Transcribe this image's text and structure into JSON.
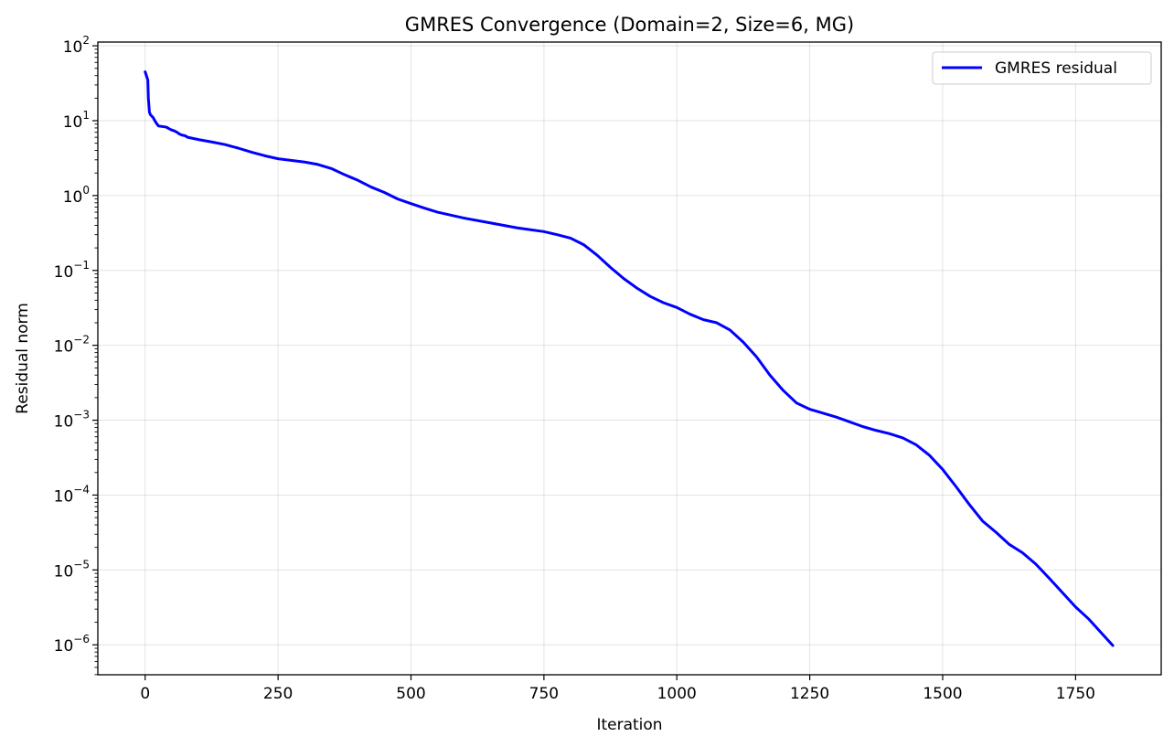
{
  "chart_data": {
    "type": "line",
    "title": "GMRES Convergence (Domain=2, Size=6, MG)",
    "xlabel": "Iteration",
    "ylabel": "Residual norm",
    "xlim": [
      -89,
      1911
    ],
    "ylim_log10": [
      -6.4,
      2.05
    ],
    "yscale": "log",
    "grid": true,
    "legend_position": "top-right",
    "x_ticks": [
      0,
      250,
      500,
      750,
      1000,
      1250,
      1500,
      1750
    ],
    "y_ticks": [
      {
        "base": "10",
        "exp": "2",
        "value": 100
      },
      {
        "base": "10",
        "exp": "1",
        "value": 10
      },
      {
        "base": "10",
        "exp": "0",
        "value": 1
      },
      {
        "base": "10",
        "exp": "−1",
        "value": 0.1
      },
      {
        "base": "10",
        "exp": "−2",
        "value": 0.01
      },
      {
        "base": "10",
        "exp": "−3",
        "value": 0.001
      },
      {
        "base": "10",
        "exp": "−4",
        "value": 0.0001
      },
      {
        "base": "10",
        "exp": "−5",
        "value": 1e-05
      },
      {
        "base": "10",
        "exp": "−6",
        "value": 1e-06
      }
    ],
    "series": [
      {
        "name": "GMRES residual",
        "color": "#0000ff",
        "x": [
          0,
          5,
          6,
          8,
          10,
          15,
          20,
          25,
          30,
          40,
          45,
          50,
          55,
          60,
          65,
          70,
          75,
          80,
          85,
          100,
          125,
          150,
          175,
          200,
          225,
          250,
          300,
          325,
          350,
          375,
          400,
          425,
          450,
          475,
          500,
          525,
          550,
          600,
          650,
          700,
          750,
          775,
          800,
          825,
          850,
          875,
          900,
          925,
          950,
          975,
          1000,
          1025,
          1050,
          1075,
          1100,
          1125,
          1150,
          1175,
          1200,
          1225,
          1250,
          1300,
          1350,
          1375,
          1400,
          1425,
          1450,
          1475,
          1500,
          1525,
          1550,
          1575,
          1600,
          1625,
          1650,
          1675,
          1700,
          1725,
          1750,
          1775,
          1800,
          1820
        ],
        "y": [
          45,
          35,
          20,
          13,
          12,
          11,
          9.5,
          8.5,
          8.4,
          8.2,
          7.8,
          7.5,
          7.3,
          7.0,
          6.6,
          6.4,
          6.3,
          6.0,
          5.9,
          5.6,
          5.2,
          4.8,
          4.3,
          3.8,
          3.4,
          3.1,
          2.8,
          2.6,
          2.3,
          1.9,
          1.6,
          1.3,
          1.1,
          0.9,
          0.78,
          0.68,
          0.6,
          0.5,
          0.43,
          0.37,
          0.33,
          0.3,
          0.27,
          0.22,
          0.16,
          0.11,
          0.078,
          0.058,
          0.045,
          0.037,
          0.032,
          0.026,
          0.022,
          0.02,
          0.016,
          0.011,
          0.007,
          0.004,
          0.0025,
          0.0017,
          0.0014,
          0.0011,
          0.00082,
          0.00073,
          0.00066,
          0.00058,
          0.00047,
          0.00034,
          0.00022,
          0.00013,
          7.5e-05,
          4.5e-05,
          3.2e-05,
          2.2e-05,
          1.7e-05,
          1.2e-05,
          7.8e-06,
          5e-06,
          3.2e-06,
          2.2e-06,
          1.4e-06,
          9.8e-07
        ]
      }
    ]
  }
}
